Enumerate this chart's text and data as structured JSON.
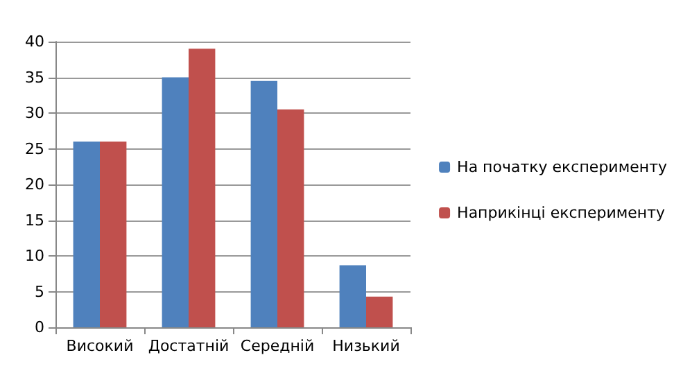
{
  "chart_data": {
    "type": "bar",
    "categories": [
      "Високий",
      "Достатній",
      "Середній",
      "Низький"
    ],
    "series": [
      {
        "name": "На початку експерименту",
        "color": "#4f81bd",
        "values": [
          26,
          35,
          34.5,
          8.7
        ]
      },
      {
        "name": "Наприкінці експерименту",
        "color": "#c0504d",
        "values": [
          26,
          39,
          30.5,
          4.3
        ]
      }
    ],
    "ylim": [
      0,
      40
    ],
    "yticks": [
      0,
      5,
      10,
      15,
      20,
      25,
      30,
      35,
      40
    ],
    "grid": "y",
    "legend": "right"
  }
}
